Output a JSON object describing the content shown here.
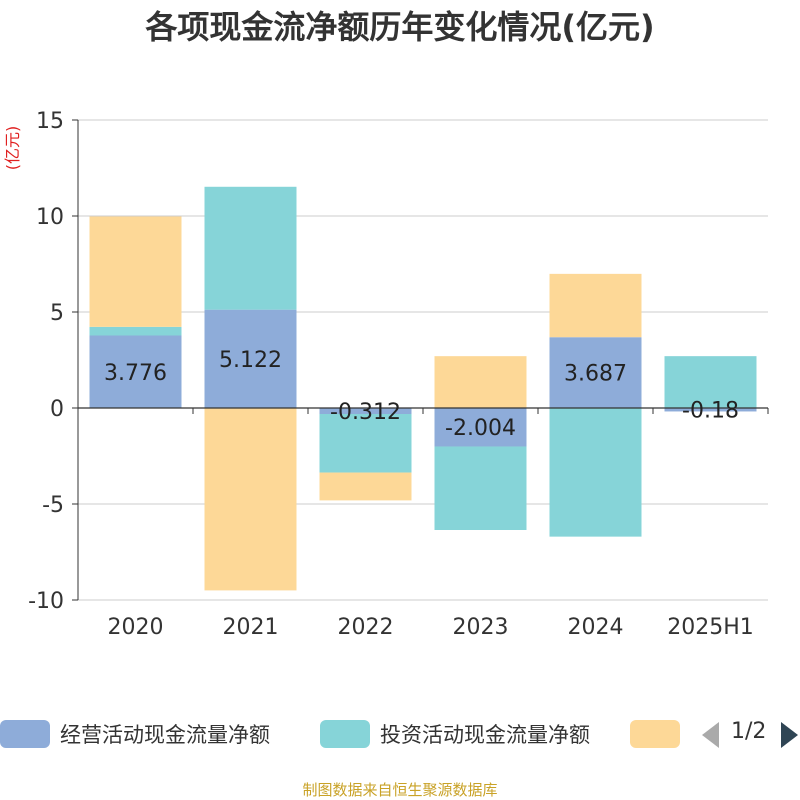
{
  "chart_data": {
    "type": "bar",
    "stacked": true,
    "title": "各项现金流净额历年变化情况(亿元)",
    "unit_label": "(亿元)",
    "categories": [
      "2020",
      "2021",
      "2022",
      "2023",
      "2024",
      "2025H1"
    ],
    "ylim": [
      -10,
      15
    ],
    "yticks": [
      -10,
      -5,
      0,
      5,
      10,
      15
    ],
    "grid": true,
    "series": [
      {
        "name": "经营活动现金流量净额",
        "color": "#8eacd9",
        "values": [
          3.776,
          5.122,
          -0.312,
          -2.004,
          3.687,
          -0.18
        ],
        "labels": [
          "3.776",
          "5.122",
          "-0.312",
          "-2.004",
          "3.687",
          "-0.18"
        ]
      },
      {
        "name": "投资活动现金流量净额",
        "color": "#86d4d8",
        "values": [
          0.45,
          6.4,
          -3.05,
          -4.35,
          -6.7,
          2.7
        ]
      },
      {
        "name": "",
        "color": "#fdd897",
        "values": [
          5.75,
          -9.5,
          -1.45,
          2.7,
          3.3,
          0
        ]
      }
    ],
    "legend_position": "bottom",
    "legend_pager": "1/2",
    "source": "制图数据来自恒生聚源数据库"
  }
}
